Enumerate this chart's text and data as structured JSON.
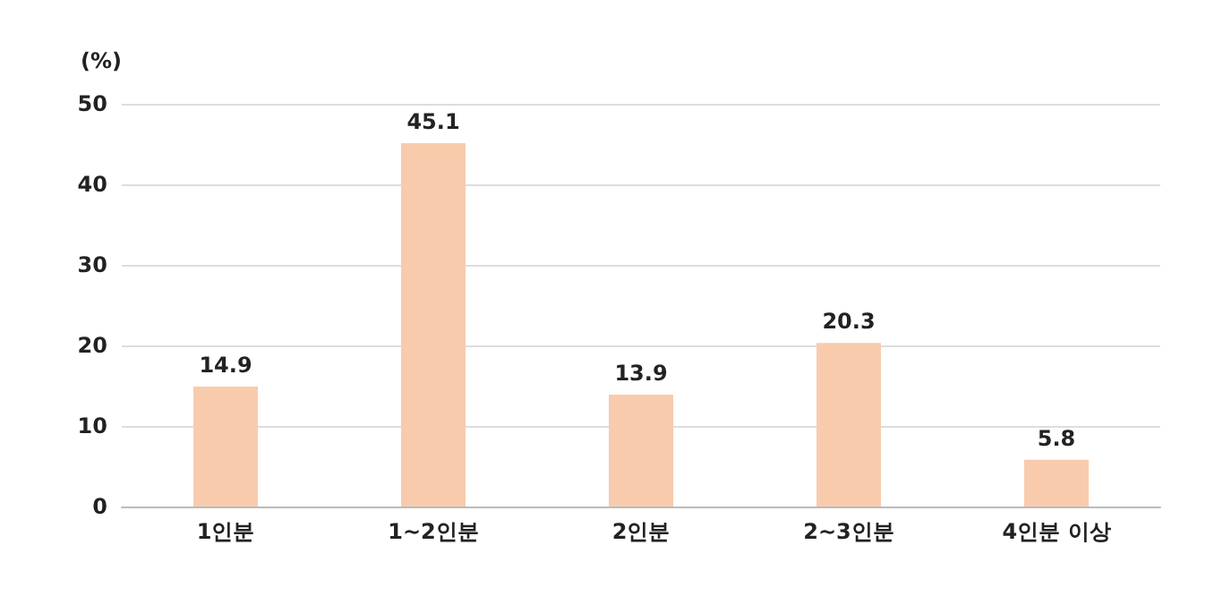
{
  "chart_data": {
    "type": "bar",
    "ylabel": "(%)",
    "categories": [
      "1인분",
      "1~2인분",
      "2인분",
      "2~3인분",
      "4인분 이상"
    ],
    "values": [
      14.9,
      45.1,
      13.9,
      20.3,
      5.8
    ],
    "color": "#f8cbad",
    "ylim": [
      0,
      50
    ],
    "yticks": [
      0,
      10,
      20,
      30,
      40,
      50
    ],
    "grid": "y",
    "data_labels": true
  }
}
